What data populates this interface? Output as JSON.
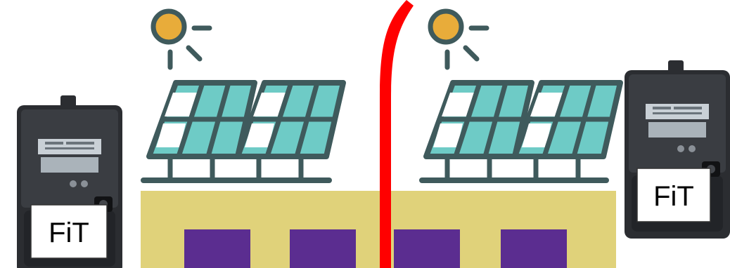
{
  "meters": [
    {
      "label": "FiT"
    },
    {
      "label": "FiT"
    }
  ],
  "colors": {
    "sun": "#e8ac3a",
    "panel_frame": "#3f5a5c",
    "panel_cell": "#6ecbc6",
    "roof": "#e0d27a",
    "window": "#5b2d90",
    "divider": "#ff0000",
    "meter_body": "#2b2d31"
  },
  "icons": {
    "sun": "sun-icon",
    "solar_panel": "solar-panel-icon",
    "meter": "electricity-meter-icon"
  }
}
